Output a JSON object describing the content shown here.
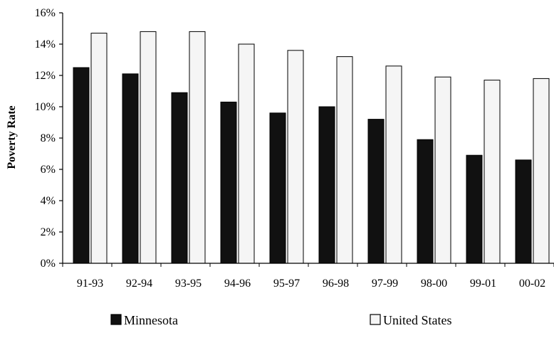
{
  "chart_data": {
    "type": "bar",
    "title": "",
    "xlabel": "",
    "ylabel": "Poverty Rate",
    "ylim": [
      0,
      16
    ],
    "y_tick_values": [
      0,
      2,
      4,
      6,
      8,
      10,
      12,
      14,
      16
    ],
    "y_tick_labels": [
      "0%",
      "2%",
      "4%",
      "6%",
      "8%",
      "10%",
      "12%",
      "14%",
      "16%"
    ],
    "categories": [
      "91-93",
      "92-94",
      "93-95",
      "94-96",
      "95-97",
      "96-98",
      "97-99",
      "98-00",
      "99-01",
      "00-02"
    ],
    "series": [
      {
        "name": "Minnesota",
        "color": "#111111",
        "values": [
          12.5,
          12.1,
          10.9,
          10.3,
          9.6,
          10.0,
          9.2,
          7.9,
          6.9,
          6.6
        ]
      },
      {
        "name": "United States",
        "color": "#f5f5f5",
        "values": [
          14.7,
          14.8,
          14.8,
          14.0,
          13.6,
          13.2,
          12.6,
          11.9,
          11.7,
          11.8
        ]
      }
    ],
    "grid": false,
    "legend_position": "bottom"
  }
}
